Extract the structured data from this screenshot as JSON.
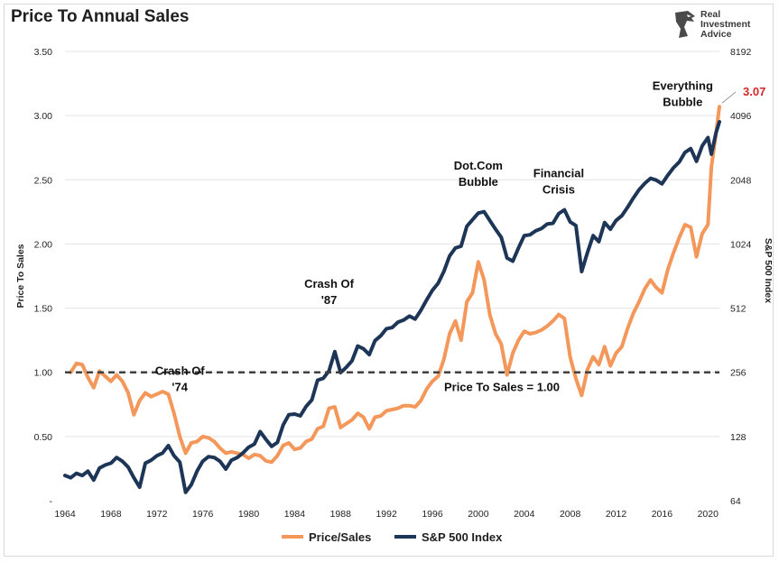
{
  "title": "Price To Annual Sales",
  "logo": {
    "lines": [
      "Real",
      "Investment",
      "Advice"
    ],
    "icon": "eagle-head-icon"
  },
  "colors": {
    "price_sales": "#f4975a",
    "sp500": "#1d3557",
    "baseline": "#404040",
    "label_red": "#d62728"
  },
  "chart_data": {
    "type": "line",
    "title": "Price To Annual Sales",
    "xlabel": "",
    "ylabel_left": "Price To Sales",
    "ylabel_right": "S&P 500 Index",
    "x_ticks": [
      "1964",
      "1968",
      "1972",
      "1976",
      "1980",
      "1984",
      "1988",
      "1992",
      "1996",
      "2000",
      "2004",
      "2008",
      "2012",
      "2016",
      "2020"
    ],
    "xlim": [
      1964,
      2021
    ],
    "ylim_left": [
      0,
      3.5
    ],
    "left_ticks": [
      {
        "v": 0,
        "label": "-"
      },
      {
        "v": 0.5,
        "label": "0.50"
      },
      {
        "v": 1.0,
        "label": "1.00"
      },
      {
        "v": 1.5,
        "label": "1.50"
      },
      {
        "v": 2.0,
        "label": "2.00"
      },
      {
        "v": 2.5,
        "label": "2.50"
      },
      {
        "v": 3.0,
        "label": "3.00"
      },
      {
        "v": 3.5,
        "label": "3.50"
      }
    ],
    "right_scale": "log2",
    "ylim_right": [
      64,
      8192
    ],
    "right_ticks": [
      "64",
      "128",
      "256",
      "512",
      "1024",
      "2048",
      "4096",
      "8192"
    ],
    "grid": "horizontal",
    "legend_position": "bottom",
    "series": [
      {
        "name": "Price/Sales",
        "axis": "left",
        "points": [
          [
            1964.5,
            1.0
          ],
          [
            1965,
            1.07
          ],
          [
            1965.5,
            1.06
          ],
          [
            1966,
            0.96
          ],
          [
            1966.5,
            0.88
          ],
          [
            1967,
            1.01
          ],
          [
            1967.5,
            0.97
          ],
          [
            1968,
            0.93
          ],
          [
            1968.5,
            0.98
          ],
          [
            1969,
            0.93
          ],
          [
            1969.5,
            0.84
          ],
          [
            1970,
            0.67
          ],
          [
            1970.5,
            0.78
          ],
          [
            1971,
            0.84
          ],
          [
            1971.5,
            0.81
          ],
          [
            1972,
            0.83
          ],
          [
            1972.5,
            0.85
          ],
          [
            1973,
            0.83
          ],
          [
            1973.5,
            0.68
          ],
          [
            1974,
            0.5
          ],
          [
            1974.5,
            0.37
          ],
          [
            1975,
            0.45
          ],
          [
            1975.5,
            0.46
          ],
          [
            1976,
            0.5
          ],
          [
            1976.5,
            0.49
          ],
          [
            1977,
            0.46
          ],
          [
            1977.5,
            0.41
          ],
          [
            1978,
            0.37
          ],
          [
            1978.5,
            0.38
          ],
          [
            1979,
            0.37
          ],
          [
            1979.5,
            0.36
          ],
          [
            1980,
            0.33
          ],
          [
            1980.5,
            0.36
          ],
          [
            1981,
            0.35
          ],
          [
            1981.5,
            0.31
          ],
          [
            1982,
            0.3
          ],
          [
            1982.5,
            0.35
          ],
          [
            1983,
            0.43
          ],
          [
            1983.5,
            0.45
          ],
          [
            1984,
            0.4
          ],
          [
            1984.5,
            0.41
          ],
          [
            1985,
            0.46
          ],
          [
            1985.5,
            0.48
          ],
          [
            1986,
            0.56
          ],
          [
            1986.5,
            0.58
          ],
          [
            1987,
            0.72
          ],
          [
            1987.5,
            0.73
          ],
          [
            1988,
            0.57
          ],
          [
            1988.5,
            0.6
          ],
          [
            1989,
            0.63
          ],
          [
            1989.5,
            0.68
          ],
          [
            1990,
            0.65
          ],
          [
            1990.5,
            0.56
          ],
          [
            1991,
            0.65
          ],
          [
            1991.5,
            0.66
          ],
          [
            1992,
            0.7
          ],
          [
            1992.5,
            0.71
          ],
          [
            1993,
            0.72
          ],
          [
            1993.5,
            0.74
          ],
          [
            1994,
            0.74
          ],
          [
            1994.5,
            0.73
          ],
          [
            1995,
            0.78
          ],
          [
            1995.5,
            0.87
          ],
          [
            1996,
            0.93
          ],
          [
            1996.5,
            0.97
          ],
          [
            1997,
            1.1
          ],
          [
            1997.5,
            1.3
          ],
          [
            1998,
            1.4
          ],
          [
            1998.5,
            1.25
          ],
          [
            1999,
            1.55
          ],
          [
            1999.5,
            1.62
          ],
          [
            2000,
            1.86
          ],
          [
            2000.5,
            1.72
          ],
          [
            2001,
            1.45
          ],
          [
            2001.5,
            1.3
          ],
          [
            2002,
            1.22
          ],
          [
            2002.5,
            0.98
          ],
          [
            2003,
            1.15
          ],
          [
            2003.5,
            1.25
          ],
          [
            2004,
            1.32
          ],
          [
            2004.5,
            1.3
          ],
          [
            2005,
            1.31
          ],
          [
            2005.5,
            1.33
          ],
          [
            2006,
            1.36
          ],
          [
            2006.5,
            1.4
          ],
          [
            2007,
            1.45
          ],
          [
            2007.5,
            1.42
          ],
          [
            2008,
            1.12
          ],
          [
            2008.5,
            0.95
          ],
          [
            2009,
            0.82
          ],
          [
            2009.5,
            1.02
          ],
          [
            2010,
            1.12
          ],
          [
            2010.5,
            1.06
          ],
          [
            2011,
            1.2
          ],
          [
            2011.5,
            1.05
          ],
          [
            2012,
            1.15
          ],
          [
            2012.5,
            1.2
          ],
          [
            2013,
            1.34
          ],
          [
            2013.5,
            1.46
          ],
          [
            2014,
            1.55
          ],
          [
            2014.5,
            1.65
          ],
          [
            2015,
            1.72
          ],
          [
            2015.5,
            1.66
          ],
          [
            2016,
            1.62
          ],
          [
            2016.5,
            1.8
          ],
          [
            2017,
            1.93
          ],
          [
            2017.5,
            2.05
          ],
          [
            2018,
            2.15
          ],
          [
            2018.5,
            2.13
          ],
          [
            2019,
            1.9
          ],
          [
            2019.5,
            2.08
          ],
          [
            2020,
            2.15
          ],
          [
            2020.3,
            2.6
          ],
          [
            2020.7,
            2.86
          ],
          [
            2021,
            3.07
          ]
        ]
      },
      {
        "name": "S&P 500 Index",
        "axis": "right",
        "points": [
          [
            1964,
            84
          ],
          [
            1964.5,
            82
          ],
          [
            1965,
            86
          ],
          [
            1965.5,
            84
          ],
          [
            1966,
            88
          ],
          [
            1966.5,
            80
          ],
          [
            1967,
            91
          ],
          [
            1967.5,
            94
          ],
          [
            1968,
            96
          ],
          [
            1968.5,
            102
          ],
          [
            1969,
            98
          ],
          [
            1969.5,
            92
          ],
          [
            1970,
            82
          ],
          [
            1970.5,
            74
          ],
          [
            1971,
            96
          ],
          [
            1971.5,
            99
          ],
          [
            1972,
            104
          ],
          [
            1972.5,
            107
          ],
          [
            1973,
            116
          ],
          [
            1973.5,
            104
          ],
          [
            1974,
            97
          ],
          [
            1974.5,
            70
          ],
          [
            1975,
            76
          ],
          [
            1975.5,
            88
          ],
          [
            1976,
            98
          ],
          [
            1976.5,
            103
          ],
          [
            1977,
            102
          ],
          [
            1977.5,
            98
          ],
          [
            1978,
            90
          ],
          [
            1978.5,
            99
          ],
          [
            1979,
            102
          ],
          [
            1979.5,
            107
          ],
          [
            1980,
            114
          ],
          [
            1980.5,
            118
          ],
          [
            1981,
            135
          ],
          [
            1981.5,
            124
          ],
          [
            1982,
            115
          ],
          [
            1982.5,
            120
          ],
          [
            1983,
            145
          ],
          [
            1983.5,
            162
          ],
          [
            1984,
            163
          ],
          [
            1984.5,
            160
          ],
          [
            1985,
            177
          ],
          [
            1985.5,
            190
          ],
          [
            1986,
            235
          ],
          [
            1986.5,
            240
          ],
          [
            1987,
            260
          ],
          [
            1987.5,
            320
          ],
          [
            1988,
            255
          ],
          [
            1988.5,
            270
          ],
          [
            1989,
            290
          ],
          [
            1989.5,
            340
          ],
          [
            1990,
            330
          ],
          [
            1990.5,
            310
          ],
          [
            1991,
            360
          ],
          [
            1991.5,
            380
          ],
          [
            1992,
            410
          ],
          [
            1992.5,
            415
          ],
          [
            1993,
            440
          ],
          [
            1993.5,
            450
          ],
          [
            1994,
            470
          ],
          [
            1994.5,
            455
          ],
          [
            1995,
            500
          ],
          [
            1995.5,
            560
          ],
          [
            1996,
            620
          ],
          [
            1996.5,
            670
          ],
          [
            1997,
            760
          ],
          [
            1997.5,
            900
          ],
          [
            1998,
            980
          ],
          [
            1998.5,
            1000
          ],
          [
            1999,
            1240
          ],
          [
            1999.5,
            1330
          ],
          [
            2000,
            1430
          ],
          [
            2000.5,
            1450
          ],
          [
            2001,
            1320
          ],
          [
            2001.5,
            1200
          ],
          [
            2002,
            1100
          ],
          [
            2002.5,
            880
          ],
          [
            2003,
            850
          ],
          [
            2003.5,
            980
          ],
          [
            2004,
            1120
          ],
          [
            2004.5,
            1130
          ],
          [
            2005,
            1180
          ],
          [
            2005.5,
            1210
          ],
          [
            2006,
            1270
          ],
          [
            2006.5,
            1280
          ],
          [
            2007,
            1420
          ],
          [
            2007.5,
            1480
          ],
          [
            2008,
            1300
          ],
          [
            2008.5,
            1250
          ],
          [
            2009,
            760
          ],
          [
            2009.5,
            930
          ],
          [
            2010,
            1120
          ],
          [
            2010.5,
            1050
          ],
          [
            2011,
            1290
          ],
          [
            2011.5,
            1200
          ],
          [
            2012,
            1320
          ],
          [
            2012.5,
            1390
          ],
          [
            2013,
            1520
          ],
          [
            2013.5,
            1680
          ],
          [
            2014,
            1840
          ],
          [
            2014.5,
            1970
          ],
          [
            2015,
            2080
          ],
          [
            2015.5,
            2040
          ],
          [
            2016,
            1960
          ],
          [
            2016.5,
            2150
          ],
          [
            2017,
            2330
          ],
          [
            2017.5,
            2480
          ],
          [
            2018,
            2750
          ],
          [
            2018.5,
            2870
          ],
          [
            2019,
            2500
          ],
          [
            2019.5,
            2950
          ],
          [
            2020,
            3230
          ],
          [
            2020.3,
            2700
          ],
          [
            2020.7,
            3400
          ],
          [
            2021,
            3830
          ]
        ]
      }
    ],
    "reference_line": {
      "value": 1.0,
      "label": "Price To Sales = 1.00"
    },
    "end_label": {
      "value": 3.07,
      "text": "3.07"
    },
    "annotations": [
      {
        "lines": [
          "Crash Of",
          "'74"
        ],
        "x": 1974,
        "y": 0.98
      },
      {
        "lines": [
          "Crash Of",
          "'87"
        ],
        "x": 1987,
        "y": 1.66
      },
      {
        "lines": [
          "Dot.Com",
          "Bubble"
        ],
        "x": 2000,
        "y": 2.58
      },
      {
        "lines": [
          "Financial",
          "Crisis"
        ],
        "x": 2007,
        "y": 2.52
      },
      {
        "lines": [
          "Everything",
          "Bubble"
        ],
        "x": 2017.8,
        "y": 3.2
      }
    ]
  }
}
